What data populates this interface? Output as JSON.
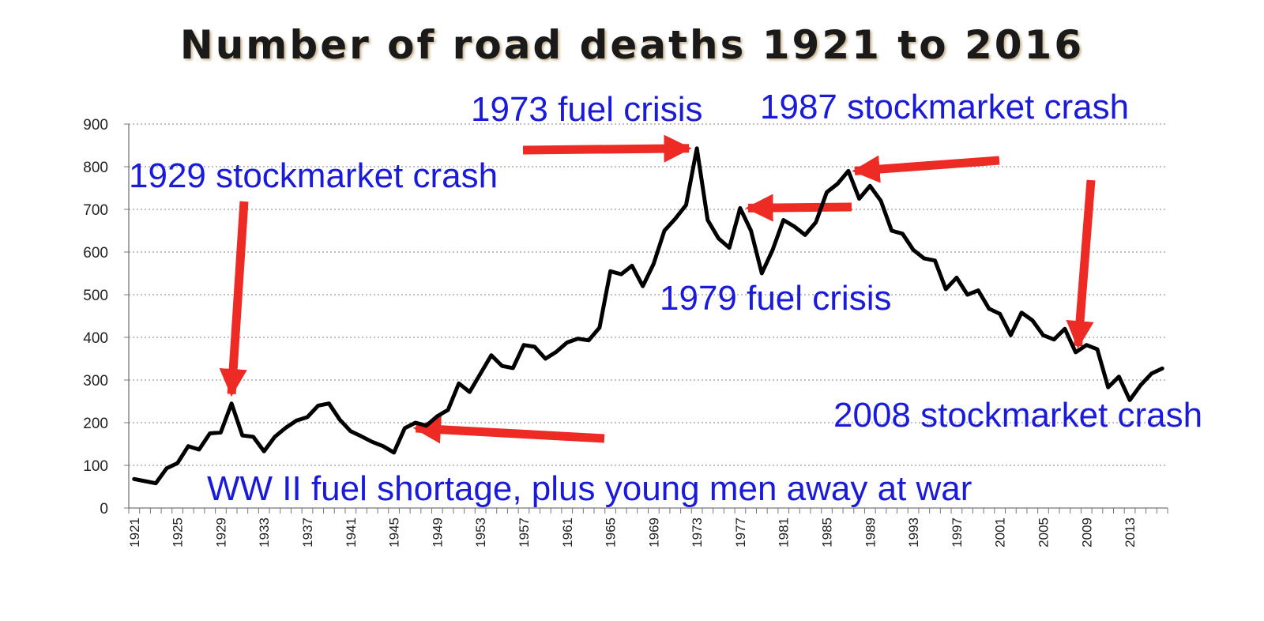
{
  "chart_data": {
    "type": "line",
    "title": "Number of road deaths 1921 to 2016",
    "xlabel": "",
    "ylabel": "",
    "ylim": [
      0,
      900
    ],
    "y_ticks": [
      "0",
      "100",
      "200",
      "300",
      "400",
      "500",
      "600",
      "700",
      "800",
      "900"
    ],
    "x_tick_labels": [
      "1921",
      "1925",
      "1929",
      "1933",
      "1937",
      "1941",
      "1945",
      "1949",
      "1953",
      "1957",
      "1961",
      "1965",
      "1969",
      "1973",
      "1977",
      "1981",
      "1985",
      "1989",
      "1993",
      "1997",
      "2001",
      "2005",
      "2009",
      "2013"
    ],
    "grid": "horizontal dotted",
    "legend": "none",
    "colors": {
      "line": "#000000",
      "annotation_text": "#1a1adb",
      "arrow": "#ee2a24"
    },
    "x": [
      1921,
      1922,
      1923,
      1924,
      1925,
      1926,
      1927,
      1928,
      1929,
      1930,
      1931,
      1932,
      1933,
      1934,
      1935,
      1936,
      1937,
      1938,
      1939,
      1940,
      1941,
      1942,
      1943,
      1944,
      1945,
      1946,
      1947,
      1948,
      1949,
      1950,
      1951,
      1952,
      1953,
      1954,
      1955,
      1956,
      1957,
      1958,
      1959,
      1960,
      1961,
      1962,
      1963,
      1964,
      1965,
      1966,
      1967,
      1968,
      1969,
      1970,
      1971,
      1972,
      1973,
      1974,
      1975,
      1976,
      1977,
      1978,
      1979,
      1980,
      1981,
      1982,
      1983,
      1984,
      1985,
      1986,
      1987,
      1988,
      1989,
      1990,
      1991,
      1992,
      1993,
      1994,
      1995,
      1996,
      1997,
      1998,
      1999,
      2000,
      2001,
      2002,
      2003,
      2004,
      2005,
      2006,
      2007,
      2008,
      2009,
      2010,
      2011,
      2012,
      2013,
      2014,
      2015,
      2016
    ],
    "series": [
      {
        "values": [
          68,
          63,
          58,
          93,
          105,
          145,
          137,
          175,
          177,
          245,
          170,
          167,
          133,
          167,
          188,
          205,
          213,
          240,
          245,
          207,
          180,
          168,
          155,
          145,
          130,
          187,
          200,
          193,
          215,
          230,
          292,
          272,
          315,
          358,
          333,
          328,
          382,
          378,
          350,
          366,
          388,
          397,
          393,
          423,
          555,
          548,
          568,
          520,
          572,
          650,
          678,
          710,
          843,
          675,
          632,
          610,
          703,
          650,
          550,
          605,
          675,
          660,
          640,
          670,
          740,
          760,
          790,
          725,
          755,
          720,
          650,
          643,
          605,
          585,
          580,
          513,
          540,
          500,
          510,
          467,
          455,
          405,
          458,
          440,
          405,
          395,
          420,
          365,
          382,
          372,
          283,
          308,
          253,
          288,
          315,
          327
        ]
      }
    ],
    "annotations": [
      {
        "text": "1929 stockmarket crash",
        "arrow_year": 1930
      },
      {
        "text": "1973 fuel crisis",
        "arrow_year": 1973
      },
      {
        "text": "1987 stockmarket crash",
        "arrow_year": 1987
      },
      {
        "text": "1979 fuel crisis",
        "arrow_year": 1977
      },
      {
        "text": "2008 stockmarket crash",
        "arrow_year": 2008
      },
      {
        "text": "WW II fuel shortage, plus young men away at war",
        "arrow_year": 1946
      }
    ]
  }
}
